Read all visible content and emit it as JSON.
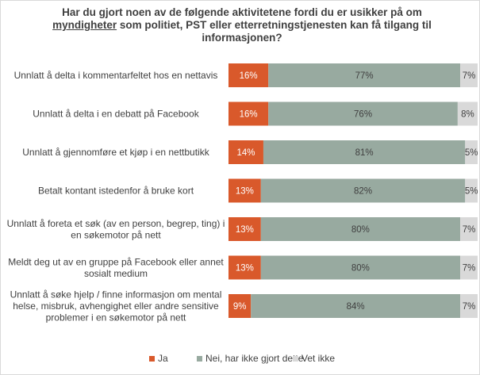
{
  "chart_data": {
    "type": "bar",
    "stacked": true,
    "orientation": "horizontal",
    "title_parts": [
      "Har du gjort noen av de følgende aktivitetene fordi du er usikker på om ",
      "myndigheter",
      " som politiet, PST eller etterretningstjenesten kan få tilgang til informasjonen?"
    ],
    "categories": [
      "Unnlatt å delta i kommentarfeltet hos en nettavis",
      "Unnlatt å delta i en debatt på Facebook",
      "Unnlatt å gjennomføre et kjøp i en nettbutikk",
      "Betalt kontant istedenfor å bruke kort",
      "Unnlatt å foreta et søk (av en person, begrep, ting) i en søkemotor på nett",
      "Meldt deg ut av en gruppe på Facebook eller annet sosialt medium",
      "Unnlatt å søke hjelp / finne informasjon om mental helse, misbruk, avhengighet eller andre sensitive problemer i en søkemotor på nett"
    ],
    "category_lines": [
      [
        "Unnlatt å delta i kommentarfeltet hos en nettavis"
      ],
      [
        "Unnlatt å delta i en debatt på Facebook"
      ],
      [
        "Unnlatt å gjennomføre et kjøp i en nettbutikk"
      ],
      [
        "Betalt kontant istedenfor å bruke kort"
      ],
      [
        "Unnlatt å foreta et søk (av en person, begrep, ting) i",
        "en søkemotor på nett"
      ],
      [
        "Meldt deg ut av en gruppe på Facebook eller annet",
        "sosialt medium"
      ],
      [
        "Unnlatt å søke hjelp / finne informasjon om mental",
        "helse, misbruk, avhengighet eller andre sensitive",
        "problemer i en søkemotor på nett"
      ]
    ],
    "series": [
      {
        "name": "Ja",
        "color": "#d9592b",
        "label_color": "#ffffff",
        "values": [
          16,
          16,
          14,
          13,
          13,
          13,
          9
        ]
      },
      {
        "name": "Nei, har ikke gjort dette",
        "color": "#98aaa0",
        "label_color": "#404040",
        "values": [
          77,
          76,
          81,
          82,
          80,
          80,
          84
        ]
      },
      {
        "name": "Vet ikke",
        "color": "#d9d9d9",
        "label_color": "#404040",
        "values": [
          7,
          8,
          5,
          5,
          7,
          7,
          7
        ]
      }
    ],
    "value_suffix": "%",
    "xlim": [
      0,
      100
    ],
    "legend_position": "bottom"
  }
}
